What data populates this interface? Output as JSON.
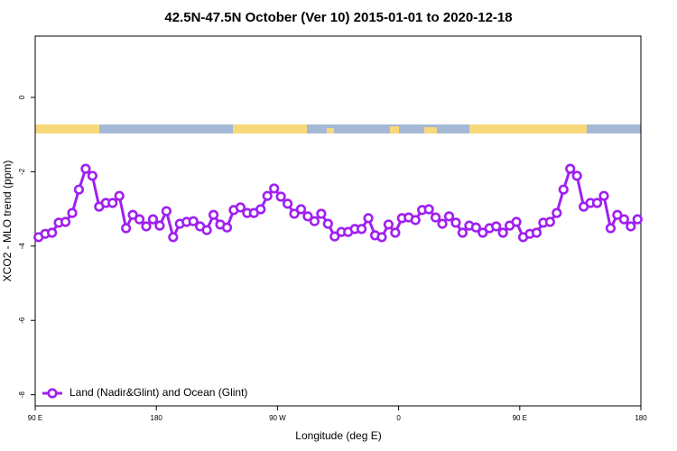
{
  "chart_data": {
    "type": "line",
    "title": "42.5N-47.5N October (Ver 10)   2015-01-01 to 2020-12-18",
    "xlabel": "Longitude (deg E)",
    "ylabel": "XCO2 - MLO trend (ppm)",
    "x": [
      92.5,
      97.5,
      102.5,
      107.5,
      112.5,
      117.5,
      122.5,
      127.5,
      132.5,
      137.5,
      142.5,
      147.5,
      152.5,
      157.5,
      162.5,
      167.5,
      172.5,
      177.5,
      182.5,
      187.5,
      192.5,
      197.5,
      202.5,
      207.5,
      212.5,
      217.5,
      222.5,
      227.5,
      232.5,
      237.5,
      242.5,
      247.5,
      252.5,
      257.5,
      262.5,
      267.5,
      272.5,
      277.5,
      282.5,
      287.5,
      292.5,
      297.5,
      302.5,
      307.5,
      312.5,
      317.5,
      322.5,
      327.5,
      332.5,
      337.5,
      342.5,
      347.5,
      352.5,
      357.5,
      362.5,
      367.5,
      372.5,
      377.5,
      382.5,
      387.5,
      392.5,
      397.5,
      402.5,
      407.5,
      412.5,
      417.5,
      422.5,
      427.5,
      432.5,
      437.5,
      442.5,
      447.5,
      452.5,
      457.5,
      462.5,
      467.5,
      472.5,
      477.5,
      482.5,
      487.5,
      492.5,
      497.5,
      502.5,
      507.5,
      512.5,
      517.5,
      522.5,
      527.5,
      532.5,
      537.5
    ],
    "series": [
      {
        "name": "Land (Nadir&Glint) and Ocean (Glint)",
        "color": "#a020f0",
        "values": [
          -3.76,
          -3.67,
          -3.64,
          -3.37,
          -3.35,
          -3.11,
          -2.48,
          -1.92,
          -2.11,
          -2.94,
          -2.84,
          -2.84,
          -2.65,
          -3.52,
          -3.16,
          -3.28,
          -3.47,
          -3.28,
          -3.45,
          -3.06,
          -3.76,
          -3.4,
          -3.35,
          -3.33,
          -3.47,
          -3.57,
          -3.16,
          -3.42,
          -3.5,
          -3.03,
          -2.96,
          -3.11,
          -3.11,
          -3.01,
          -2.65,
          -2.45,
          -2.67,
          -2.86,
          -3.13,
          -3.01,
          -3.2,
          -3.33,
          -3.13,
          -3.4,
          -3.74,
          -3.62,
          -3.62,
          -3.54,
          -3.54,
          -3.25,
          -3.71,
          -3.76,
          -3.42,
          -3.64,
          -3.25,
          -3.23,
          -3.3,
          -3.03,
          -3.01,
          -3.23,
          -3.4,
          -3.2,
          -3.37,
          -3.64,
          -3.45,
          -3.5,
          -3.64,
          -3.52,
          -3.47,
          -3.64,
          -3.45,
          -3.35,
          -3.76,
          -3.67,
          -3.64,
          -3.37,
          -3.35,
          -3.11,
          -2.48,
          -1.92,
          -2.11,
          -2.94,
          -2.84,
          -2.84,
          -2.65,
          -3.52,
          -3.16,
          -3.28,
          -3.47,
          -3.28
        ]
      }
    ],
    "xlim": [
      90,
      540
    ],
    "xticks": [
      {
        "value": 90,
        "label": "90 E"
      },
      180,
      {
        "value": 270,
        "label": "90 W"
      },
      {
        "value": 360,
        "label": "0"
      },
      {
        "value": 450,
        "label": "90 E"
      },
      {
        "value": 540,
        "label": "180"
      }
    ],
    "ylim": [
      -8.3,
      1.65
    ],
    "yticks": [
      0,
      -2,
      -4,
      -6,
      -8
    ],
    "legend": "bottom-left"
  }
}
